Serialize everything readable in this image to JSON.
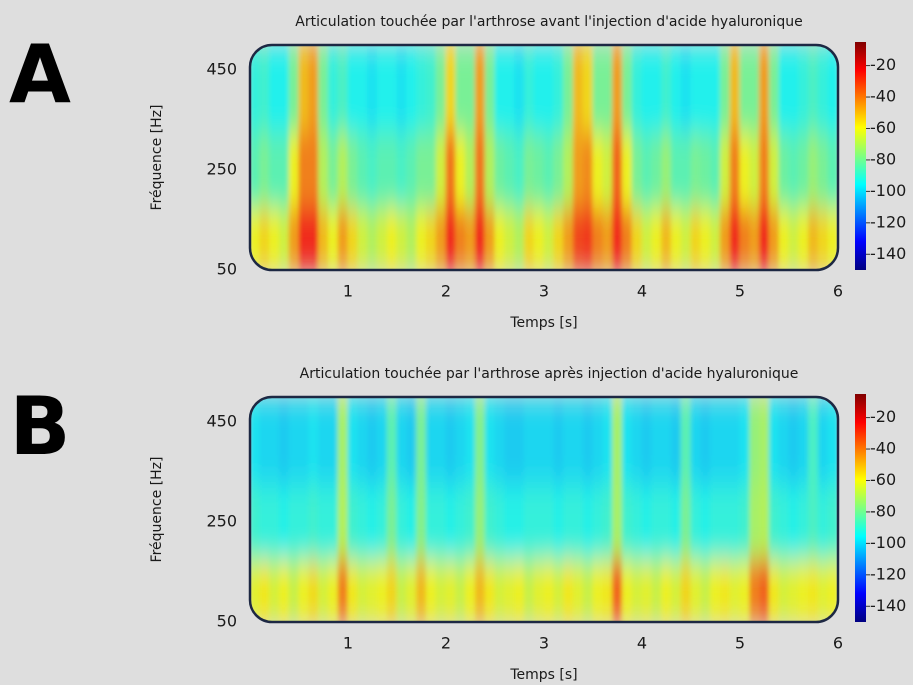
{
  "chart_data": [
    {
      "type": "heatmap",
      "panel_label": "A",
      "title": "Articulation touchée par l'arthrose avant l'injection d'acide hyaluronique",
      "xlabel": "Temps [s]",
      "ylabel": "Fréquence [Hz]",
      "colormap": "jet",
      "xlim": [
        0,
        6
      ],
      "xticks": [
        1,
        2,
        3,
        4,
        5,
        6
      ],
      "ylim": [
        50,
        500
      ],
      "yticks": [
        50,
        250,
        450
      ],
      "clim": [
        -150,
        -5
      ],
      "cticks": [
        -20,
        -40,
        -60,
        -80,
        -100,
        -120,
        -140
      ],
      "x": [
        0.05,
        0.15,
        0.25,
        0.35,
        0.45,
        0.55,
        0.65,
        0.75,
        0.85,
        0.95,
        1.05,
        1.15,
        1.25,
        1.35,
        1.45,
        1.55,
        1.65,
        1.75,
        1.85,
        1.95,
        2.05,
        2.15,
        2.25,
        2.35,
        2.45,
        2.55,
        2.65,
        2.75,
        2.85,
        2.95,
        3.05,
        3.15,
        3.25,
        3.35,
        3.45,
        3.55,
        3.65,
        3.75,
        3.85,
        3.95,
        4.05,
        4.15,
        4.25,
        4.35,
        4.45,
        4.55,
        4.65,
        4.75,
        4.85,
        4.95,
        5.05,
        5.15,
        5.25,
        5.35,
        5.45,
        5.55,
        5.65,
        5.75,
        5.85,
        5.95
      ],
      "ybins": [
        50,
        175,
        325,
        500
      ],
      "z": [
        [
          -60,
          -55,
          -60,
          -65,
          -45,
          -25,
          -25,
          -50,
          -60,
          -45,
          -55,
          -65,
          -70,
          -65,
          -60,
          -65,
          -70,
          -60,
          -55,
          -45,
          -25,
          -40,
          -45,
          -25,
          -45,
          -60,
          -65,
          -70,
          -55,
          -60,
          -65,
          -55,
          -45,
          -30,
          -28,
          -40,
          -45,
          -25,
          -40,
          -55,
          -65,
          -60,
          -50,
          -60,
          -65,
          -55,
          -60,
          -65,
          -45,
          -25,
          -40,
          -45,
          -25,
          -45,
          -60,
          -65,
          -60,
          -50,
          -55,
          -60
        ],
        [
          -85,
          -80,
          -85,
          -85,
          -60,
          -40,
          -40,
          -70,
          -80,
          -70,
          -80,
          -85,
          -88,
          -85,
          -85,
          -88,
          -85,
          -80,
          -80,
          -65,
          -38,
          -60,
          -70,
          -38,
          -70,
          -82,
          -85,
          -88,
          -80,
          -82,
          -85,
          -80,
          -70,
          -45,
          -42,
          -60,
          -65,
          -35,
          -60,
          -80,
          -85,
          -82,
          -75,
          -85,
          -85,
          -80,
          -82,
          -85,
          -65,
          -40,
          -60,
          -65,
          -40,
          -65,
          -82,
          -85,
          -82,
          -75,
          -80,
          -85
        ],
        [
          -92,
          -90,
          -95,
          -95,
          -80,
          -50,
          -45,
          -80,
          -92,
          -88,
          -95,
          -95,
          -98,
          -95,
          -95,
          -98,
          -95,
          -92,
          -90,
          -80,
          -55,
          -80,
          -80,
          -45,
          -80,
          -95,
          -95,
          -98,
          -92,
          -95,
          -95,
          -92,
          -80,
          -50,
          -55,
          -80,
          -80,
          -45,
          -80,
          -92,
          -95,
          -95,
          -90,
          -95,
          -98,
          -95,
          -95,
          -95,
          -80,
          -50,
          -80,
          -80,
          -45,
          -80,
          -95,
          -95,
          -92,
          -88,
          -92,
          -95
        ]
      ]
    },
    {
      "type": "heatmap",
      "panel_label": "B",
      "title": "Articulation touchée par l'arthrose après injection d'acide hyaluronique",
      "xlabel": "Temps [s]",
      "ylabel": "Fréquence [Hz]",
      "colormap": "jet",
      "xlim": [
        0,
        6
      ],
      "xticks": [
        1,
        2,
        3,
        4,
        5,
        6
      ],
      "ylim": [
        50,
        500
      ],
      "yticks": [
        50,
        250,
        450
      ],
      "clim": [
        -150,
        -5
      ],
      "cticks": [
        -20,
        -40,
        -60,
        -80,
        -100,
        -120,
        -140
      ],
      "x": [
        0.05,
        0.15,
        0.25,
        0.35,
        0.45,
        0.55,
        0.65,
        0.75,
        0.85,
        0.95,
        1.05,
        1.15,
        1.25,
        1.35,
        1.45,
        1.55,
        1.65,
        1.75,
        1.85,
        1.95,
        2.05,
        2.15,
        2.25,
        2.35,
        2.45,
        2.55,
        2.65,
        2.75,
        2.85,
        2.95,
        3.05,
        3.15,
        3.25,
        3.35,
        3.45,
        3.55,
        3.65,
        3.75,
        3.85,
        3.95,
        4.05,
        4.15,
        4.25,
        4.35,
        4.45,
        4.55,
        4.65,
        4.75,
        4.85,
        4.95,
        5.05,
        5.15,
        5.25,
        5.35,
        5.45,
        5.55,
        5.65,
        5.75,
        5.85,
        5.95
      ],
      "ybins": [
        50,
        175,
        325,
        500
      ],
      "z": [
        [
          -62,
          -58,
          -64,
          -60,
          -66,
          -60,
          -56,
          -64,
          -60,
          -40,
          -58,
          -64,
          -62,
          -60,
          -55,
          -66,
          -62,
          -50,
          -60,
          -64,
          -62,
          -66,
          -60,
          -50,
          -58,
          -64,
          -62,
          -60,
          -66,
          -62,
          -60,
          -64,
          -58,
          -62,
          -66,
          -60,
          -58,
          -35,
          -60,
          -64,
          -62,
          -66,
          -60,
          -64,
          -55,
          -62,
          -66,
          -60,
          -58,
          -62,
          -60,
          -40,
          -35,
          -58,
          -64,
          -62,
          -60,
          -58,
          -62,
          -60
        ],
        [
          -90,
          -92,
          -92,
          -94,
          -92,
          -92,
          -90,
          -92,
          -92,
          -70,
          -90,
          -92,
          -94,
          -92,
          -80,
          -92,
          -94,
          -78,
          -92,
          -92,
          -94,
          -92,
          -90,
          -75,
          -90,
          -92,
          -94,
          -94,
          -92,
          -92,
          -92,
          -94,
          -92,
          -92,
          -94,
          -92,
          -90,
          -72,
          -90,
          -92,
          -94,
          -92,
          -92,
          -94,
          -80,
          -92,
          -94,
          -92,
          -92,
          -92,
          -90,
          -72,
          -70,
          -90,
          -92,
          -94,
          -92,
          -88,
          -92,
          -90
        ],
        [
          -98,
          -100,
          -100,
          -102,
          -100,
          -100,
          -98,
          -100,
          -100,
          -72,
          -98,
          -100,
          -102,
          -100,
          -85,
          -100,
          -102,
          -80,
          -100,
          -100,
          -102,
          -100,
          -98,
          -78,
          -98,
          -100,
          -102,
          -102,
          -100,
          -100,
          -100,
          -102,
          -100,
          -100,
          -102,
          -100,
          -98,
          -72,
          -98,
          -100,
          -102,
          -100,
          -100,
          -102,
          -85,
          -100,
          -102,
          -100,
          -100,
          -100,
          -98,
          -75,
          -72,
          -98,
          -100,
          -102,
          -100,
          -88,
          -100,
          -98
        ]
      ]
    }
  ]
}
